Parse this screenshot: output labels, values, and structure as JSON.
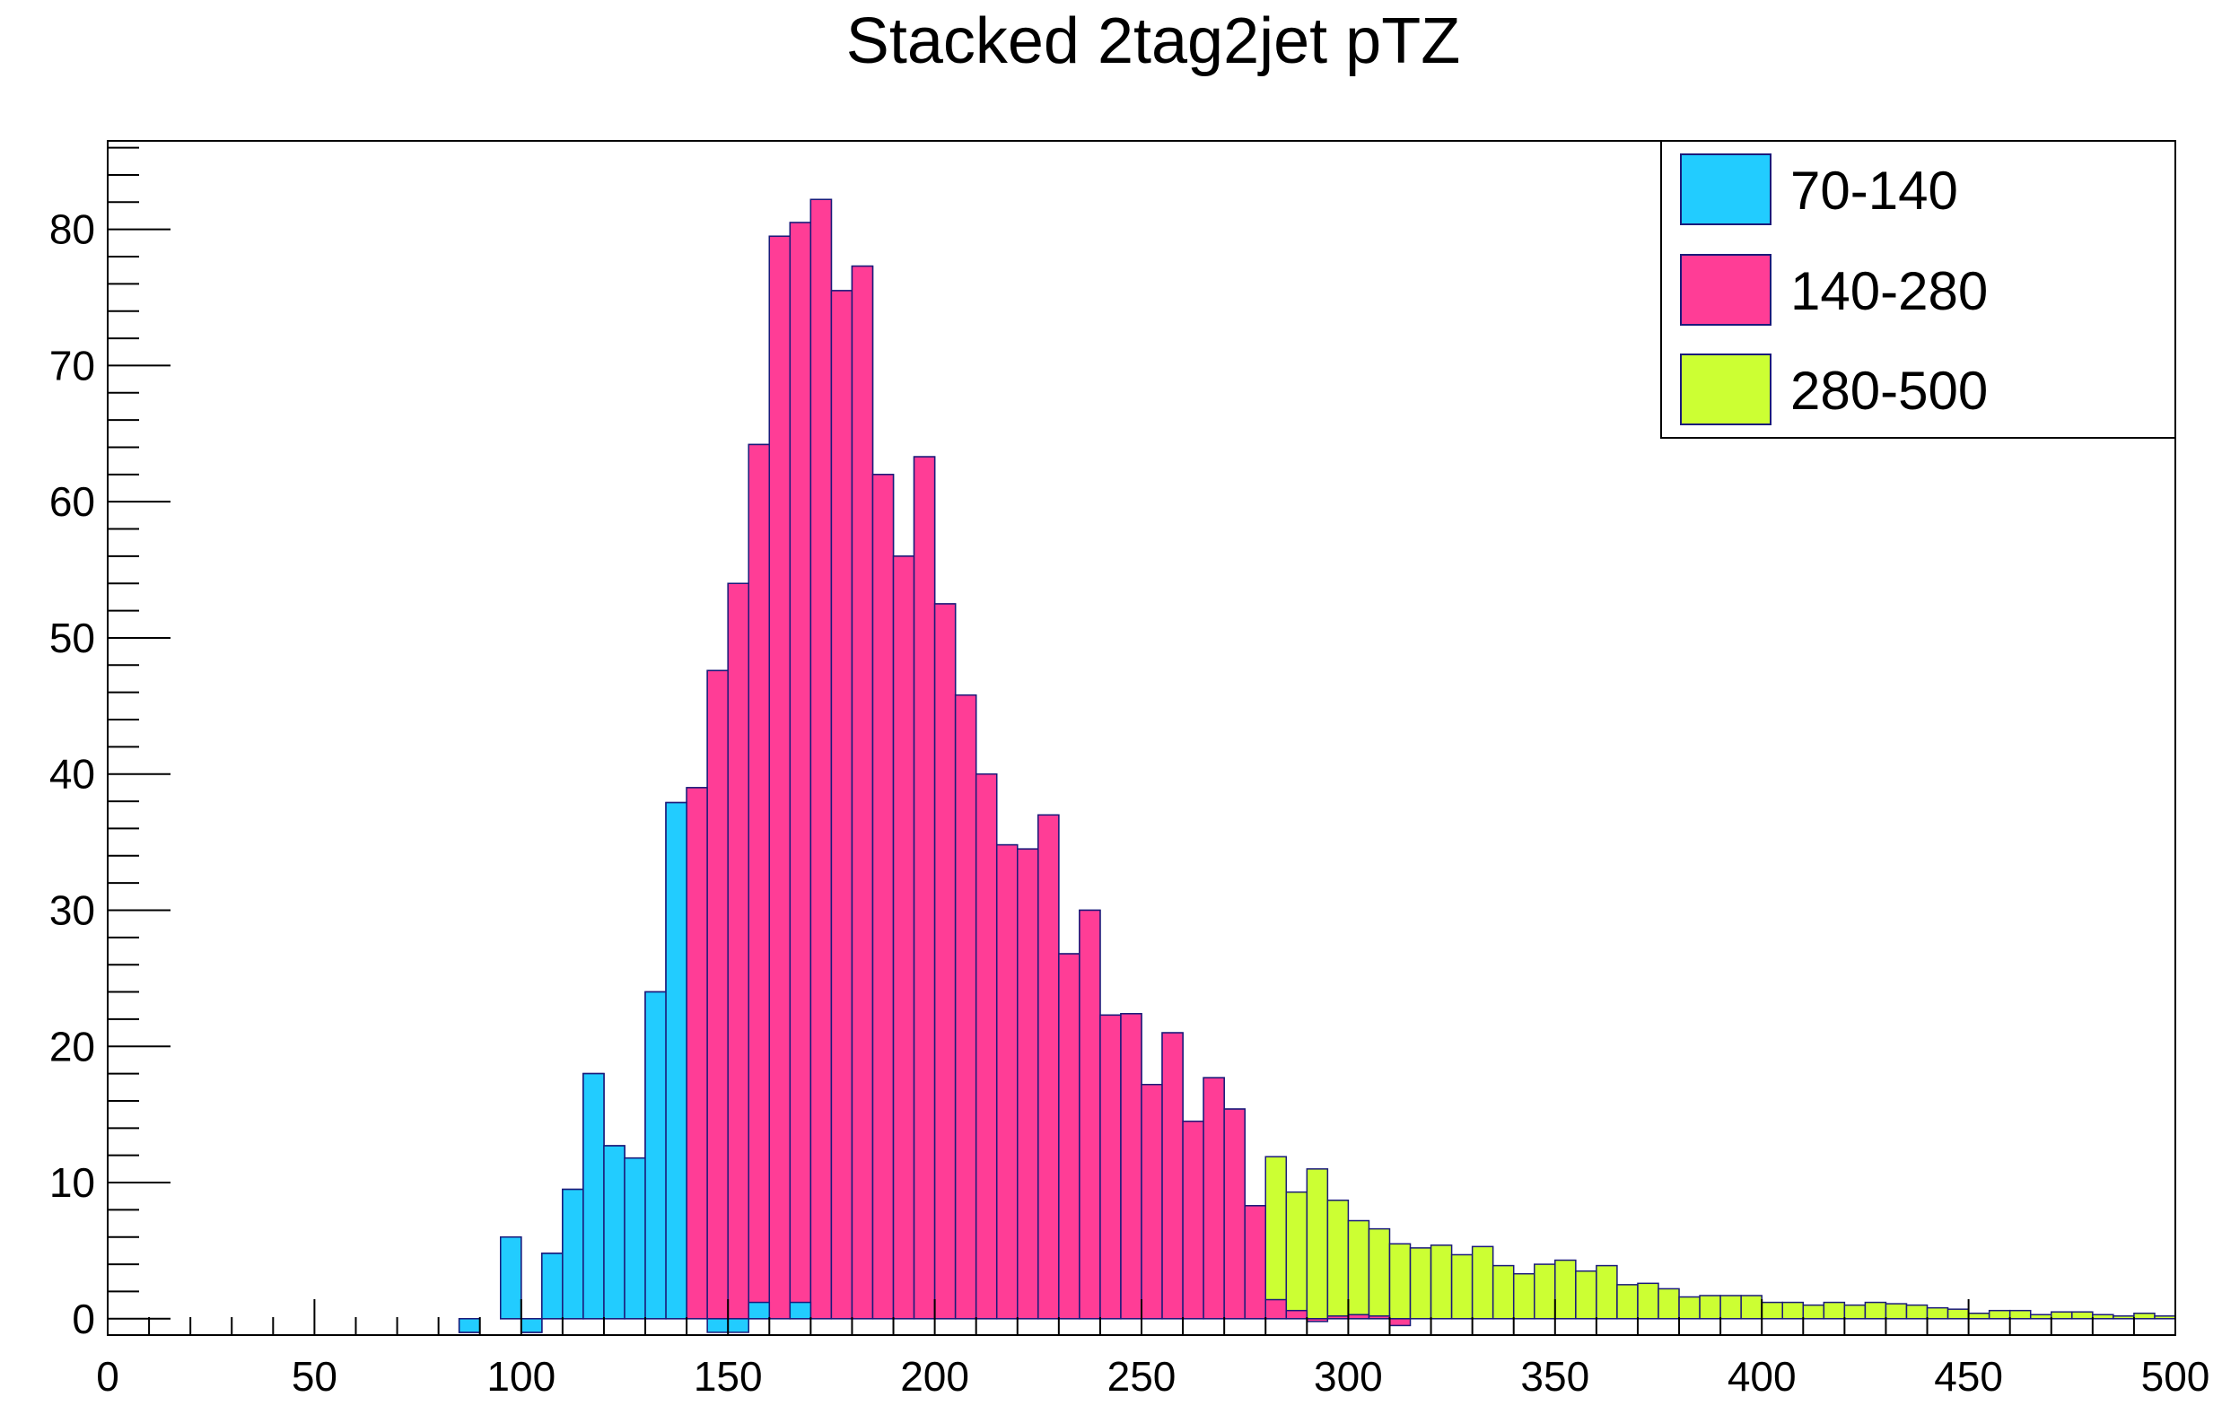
{
  "chart_data": {
    "type": "bar",
    "title": "Stacked 2tag2jet pTZ",
    "xlabel": "",
    "ylabel": "",
    "stacked": true,
    "xlim": [
      0,
      500
    ],
    "ylim": [
      -1.2,
      86.5
    ],
    "bin_width": 5,
    "x_ticks": [
      0,
      50,
      100,
      150,
      200,
      250,
      300,
      350,
      400,
      450,
      500
    ],
    "y_ticks": [
      0,
      10,
      20,
      30,
      40,
      50,
      60,
      70,
      80
    ],
    "grid": false,
    "legend_position": "top-right",
    "series": [
      {
        "name": "70-140",
        "color": "#22ccff",
        "bins": [
          {
            "x": 85,
            "value": -1.0
          },
          {
            "x": 95,
            "value": 6.0
          },
          {
            "x": 100,
            "value": -1.0
          },
          {
            "x": 105,
            "value": 4.8
          },
          {
            "x": 110,
            "value": 9.5
          },
          {
            "x": 115,
            "value": 18.0
          },
          {
            "x": 120,
            "value": 12.7
          },
          {
            "x": 125,
            "value": 11.8
          },
          {
            "x": 130,
            "value": 24.0
          },
          {
            "x": 135,
            "value": 37.9
          },
          {
            "x": 145,
            "value": -1.0
          },
          {
            "x": 150,
            "value": -1.0
          },
          {
            "x": 155,
            "value": 1.2
          },
          {
            "x": 165,
            "value": 1.2
          }
        ]
      },
      {
        "name": "140-280",
        "color": "#ff3d96",
        "bins": [
          {
            "x": 140,
            "value": 39.0
          },
          {
            "x": 145,
            "value": 48.6
          },
          {
            "x": 150,
            "value": 55.0
          },
          {
            "x": 155,
            "value": 63.0
          },
          {
            "x": 160,
            "value": 79.5
          },
          {
            "x": 165,
            "value": 79.3
          },
          {
            "x": 170,
            "value": 82.2
          },
          {
            "x": 175,
            "value": 75.5
          },
          {
            "x": 180,
            "value": 77.3
          },
          {
            "x": 185,
            "value": 62.0
          },
          {
            "x": 190,
            "value": 56.0
          },
          {
            "x": 195,
            "value": 63.3
          },
          {
            "x": 200,
            "value": 52.5
          },
          {
            "x": 205,
            "value": 45.8
          },
          {
            "x": 210,
            "value": 40.0
          },
          {
            "x": 215,
            "value": 34.8
          },
          {
            "x": 220,
            "value": 34.5
          },
          {
            "x": 225,
            "value": 37.0
          },
          {
            "x": 230,
            "value": 26.8
          },
          {
            "x": 235,
            "value": 30.0
          },
          {
            "x": 240,
            "value": 22.3
          },
          {
            "x": 245,
            "value": 22.4
          },
          {
            "x": 250,
            "value": 17.2
          },
          {
            "x": 255,
            "value": 21.0
          },
          {
            "x": 260,
            "value": 14.5
          },
          {
            "x": 265,
            "value": 17.7
          },
          {
            "x": 270,
            "value": 15.4
          },
          {
            "x": 275,
            "value": 8.3
          },
          {
            "x": 280,
            "value": 1.4
          },
          {
            "x": 285,
            "value": 0.6
          },
          {
            "x": 290,
            "value": -0.2
          },
          {
            "x": 295,
            "value": 0.2
          },
          {
            "x": 300,
            "value": 0.3
          },
          {
            "x": 305,
            "value": 0.2
          },
          {
            "x": 310,
            "value": -0.5
          }
        ]
      },
      {
        "name": "280-500",
        "color": "#ccff33",
        "bins": [
          {
            "x": 280,
            "value": 10.5
          },
          {
            "x": 285,
            "value": 8.7
          },
          {
            "x": 290,
            "value": 11.2
          },
          {
            "x": 295,
            "value": 8.5
          },
          {
            "x": 300,
            "value": 6.9
          },
          {
            "x": 305,
            "value": 6.4
          },
          {
            "x": 310,
            "value": 6.0
          },
          {
            "x": 315,
            "value": 5.2
          },
          {
            "x": 320,
            "value": 5.4
          },
          {
            "x": 325,
            "value": 4.7
          },
          {
            "x": 330,
            "value": 5.3
          },
          {
            "x": 335,
            "value": 3.9
          },
          {
            "x": 340,
            "value": 3.3
          },
          {
            "x": 345,
            "value": 4.0
          },
          {
            "x": 350,
            "value": 4.3
          },
          {
            "x": 355,
            "value": 3.5
          },
          {
            "x": 360,
            "value": 3.9
          },
          {
            "x": 365,
            "value": 2.5
          },
          {
            "x": 370,
            "value": 2.6
          },
          {
            "x": 375,
            "value": 2.2
          },
          {
            "x": 380,
            "value": 1.6
          },
          {
            "x": 385,
            "value": 1.7
          },
          {
            "x": 390,
            "value": 1.7
          },
          {
            "x": 395,
            "value": 1.7
          },
          {
            "x": 400,
            "value": 1.2
          },
          {
            "x": 405,
            "value": 1.2
          },
          {
            "x": 410,
            "value": 1.0
          },
          {
            "x": 415,
            "value": 1.2
          },
          {
            "x": 420,
            "value": 1.0
          },
          {
            "x": 425,
            "value": 1.2
          },
          {
            "x": 430,
            "value": 1.1
          },
          {
            "x": 435,
            "value": 1.0
          },
          {
            "x": 440,
            "value": 0.8
          },
          {
            "x": 445,
            "value": 0.7
          },
          {
            "x": 450,
            "value": 0.4
          },
          {
            "x": 455,
            "value": 0.6
          },
          {
            "x": 460,
            "value": 0.6
          },
          {
            "x": 465,
            "value": 0.3
          },
          {
            "x": 470,
            "value": 0.5
          },
          {
            "x": 475,
            "value": 0.5
          },
          {
            "x": 480,
            "value": 0.3
          },
          {
            "x": 485,
            "value": 0.2
          },
          {
            "x": 490,
            "value": 0.4
          },
          {
            "x": 495,
            "value": 0.2
          }
        ]
      }
    ]
  }
}
